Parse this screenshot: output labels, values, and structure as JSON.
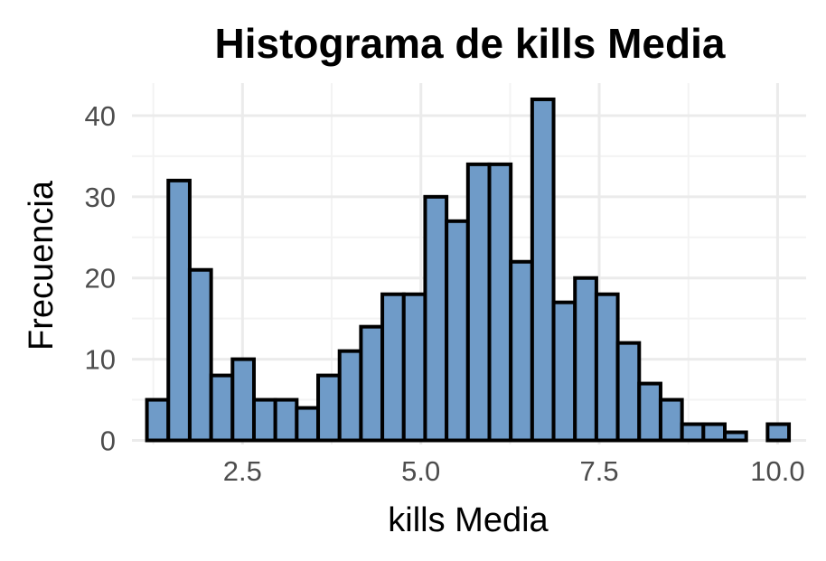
{
  "chart_data": {
    "type": "bar",
    "title": "Histograma de kills Media",
    "xlabel": "kills Media",
    "ylabel": "Frecuencia",
    "bar_color": "#6f9bc8",
    "bar_edge_color": "#000000",
    "grid": true,
    "xlim": [
      0.95,
      10.4
    ],
    "ylim": [
      -0.5,
      44
    ],
    "x_ticks": [
      {
        "value": 2.5,
        "label": "2.5"
      },
      {
        "value": 5.0,
        "label": "5.0"
      },
      {
        "value": 7.5,
        "label": "7.5"
      },
      {
        "value": 10.0,
        "label": "10.0"
      }
    ],
    "y_ticks": [
      {
        "value": 0,
        "label": "0"
      },
      {
        "value": 10,
        "label": "10"
      },
      {
        "value": 20,
        "label": "20"
      },
      {
        "value": 30,
        "label": "30"
      },
      {
        "value": 40,
        "label": "40"
      }
    ],
    "bins": [
      {
        "x0": 1.16,
        "x1": 1.46,
        "count": 5
      },
      {
        "x0": 1.46,
        "x1": 1.76,
        "count": 32
      },
      {
        "x0": 1.76,
        "x1": 2.06,
        "count": 21
      },
      {
        "x0": 2.06,
        "x1": 2.36,
        "count": 8
      },
      {
        "x0": 2.36,
        "x1": 2.66,
        "count": 10
      },
      {
        "x0": 2.66,
        "x1": 2.96,
        "count": 5
      },
      {
        "x0": 2.96,
        "x1": 3.26,
        "count": 5
      },
      {
        "x0": 3.26,
        "x1": 3.56,
        "count": 4
      },
      {
        "x0": 3.56,
        "x1": 3.86,
        "count": 8
      },
      {
        "x0": 3.86,
        "x1": 4.16,
        "count": 11
      },
      {
        "x0": 4.16,
        "x1": 4.46,
        "count": 14
      },
      {
        "x0": 4.46,
        "x1": 4.76,
        "count": 18
      },
      {
        "x0": 4.76,
        "x1": 5.06,
        "count": 18
      },
      {
        "x0": 5.06,
        "x1": 5.36,
        "count": 30
      },
      {
        "x0": 5.36,
        "x1": 5.66,
        "count": 27
      },
      {
        "x0": 5.66,
        "x1": 5.96,
        "count": 34
      },
      {
        "x0": 5.96,
        "x1": 6.26,
        "count": 34
      },
      {
        "x0": 6.26,
        "x1": 6.56,
        "count": 22
      },
      {
        "x0": 6.56,
        "x1": 6.86,
        "count": 42
      },
      {
        "x0": 6.86,
        "x1": 7.16,
        "count": 17
      },
      {
        "x0": 7.16,
        "x1": 7.46,
        "count": 20
      },
      {
        "x0": 7.46,
        "x1": 7.76,
        "count": 18
      },
      {
        "x0": 7.76,
        "x1": 8.06,
        "count": 12
      },
      {
        "x0": 8.06,
        "x1": 8.36,
        "count": 7
      },
      {
        "x0": 8.36,
        "x1": 8.66,
        "count": 5
      },
      {
        "x0": 8.66,
        "x1": 8.96,
        "count": 2
      },
      {
        "x0": 8.96,
        "x1": 9.26,
        "count": 2
      },
      {
        "x0": 9.26,
        "x1": 9.56,
        "count": 1
      },
      {
        "x0": 9.56,
        "x1": 9.86,
        "count": 0
      },
      {
        "x0": 9.86,
        "x1": 10.16,
        "count": 2
      }
    ]
  }
}
